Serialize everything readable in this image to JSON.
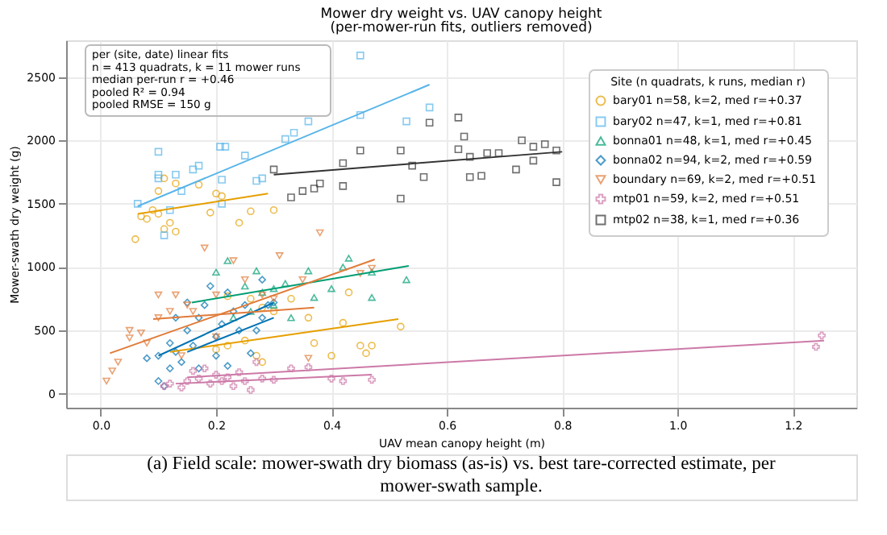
{
  "chart_data": {
    "type": "scatter",
    "title": "Mower dry weight vs. UAV canopy height",
    "subtitle": "(per-mower-run fits, outliers removed)",
    "xlabel": "UAV mean canopy height (m)",
    "ylabel": "Mower-swath dry weight (g)",
    "legend_title": "Site (n quadrats, k runs, median r)",
    "xlim": [
      -0.06,
      1.31
    ],
    "ylim": [
      -110,
      2790
    ],
    "xticks": [
      {
        "value": 0,
        "label": "0.0"
      },
      {
        "value": 0.2,
        "label": "0.2"
      },
      {
        "value": 0.4,
        "label": "0.4"
      },
      {
        "value": 0.6,
        "label": "0.6"
      },
      {
        "value": 0.8,
        "label": "0.8"
      },
      {
        "value": 1,
        "label": "1.0"
      },
      {
        "value": 1.2,
        "label": "1.2"
      }
    ],
    "yticks": [
      0,
      500,
      1000,
      1500,
      2000,
      2500
    ],
    "grid": true,
    "legend": "top right",
    "annotations": [
      "per (site, date) linear fits",
      "n = 413 quadrats,  k = 11 mower runs",
      "median per-run r = +0.46",
      "pooled R² = 0.94",
      "pooled RMSE = 150 g",
      "(a) Field scale: mower-swath dry biomass (as-is) vs. best tare-corrected estimate, per mower-swath sample."
    ],
    "series": [
      {
        "name": "bary01  n=58, k=2, med r=+0.37",
        "color": "#e69f00",
        "marker": "circle",
        "x": [
          0.07,
          0.08,
          0.09,
          0.1,
          0.12,
          0.11,
          0.13,
          0.06,
          0.19,
          0.2,
          0.21,
          0.1,
          0.13,
          0.17,
          0.26,
          0.3,
          0.24,
          0.11,
          0.2,
          0.22,
          0.25,
          0.27,
          0.28,
          0.3,
          0.33,
          0.36,
          0.37,
          0.4,
          0.42,
          0.43,
          0.45,
          0.46,
          0.47,
          0.52,
          0.26,
          0.28,
          0.22
        ],
        "values": [
          1400,
          1380,
          1450,
          1420,
          1350,
          1300,
          1280,
          1220,
          1430,
          1580,
          1560,
          1600,
          1660,
          1650,
          1440,
          1450,
          1350,
          1700,
          350,
          380,
          420,
          300,
          250,
          650,
          750,
          600,
          400,
          300,
          560,
          800,
          380,
          320,
          380,
          530,
          750,
          680,
          770
        ]
      },
      {
        "name": "bary02  n=47, k=1, med r=+0.81",
        "color": "#56b4e9",
        "marker": "square",
        "x": [
          0.064,
          0.1,
          0.1,
          0.1,
          0.13,
          0.14,
          0.16,
          0.17,
          0.207,
          0.216,
          0.21,
          0.25,
          0.27,
          0.28,
          0.32,
          0.335,
          0.36,
          0.45,
          0.45,
          0.53,
          0.57,
          0.21,
          0.12,
          0.11
        ],
        "values": [
          1500,
          1700,
          1910,
          1730,
          1730,
          1600,
          1770,
          1800,
          1950,
          1950,
          1690,
          1880,
          1680,
          1700,
          2010,
          2060,
          2150,
          2200,
          2670,
          2150,
          2260,
          1500,
          1450,
          1250
        ]
      },
      {
        "name": "bonna01  n=48, k=1, med r=+0.45",
        "color": "#009e73",
        "marker": "triangle",
        "x": [
          0.2,
          0.22,
          0.25,
          0.27,
          0.28,
          0.3,
          0.32,
          0.33,
          0.36,
          0.37,
          0.4,
          0.42,
          0.43,
          0.47,
          0.47,
          0.53,
          0.23,
          0.26,
          0.3
        ],
        "values": [
          960,
          1050,
          850,
          970,
          800,
          700,
          870,
          600,
          970,
          760,
          830,
          1000,
          1070,
          960,
          760,
          900,
          600,
          650,
          830
        ]
      },
      {
        "name": "bonna02  n=94, k=2, med r=+0.59",
        "color": "#0072b2",
        "marker": "diamond",
        "x": [
          0.08,
          0.1,
          0.1,
          0.12,
          0.12,
          0.13,
          0.14,
          0.15,
          0.15,
          0.16,
          0.17,
          0.17,
          0.18,
          0.19,
          0.2,
          0.2,
          0.21,
          0.22,
          0.22,
          0.23,
          0.24,
          0.25,
          0.26,
          0.27,
          0.28,
          0.28,
          0.29,
          0.3,
          0.11,
          0.13
        ],
        "values": [
          280,
          100,
          300,
          200,
          400,
          330,
          250,
          500,
          720,
          380,
          200,
          600,
          700,
          850,
          450,
          300,
          550,
          220,
          800,
          650,
          500,
          700,
          320,
          500,
          600,
          900,
          700,
          720,
          60,
          600
        ]
      },
      {
        "name": "boundary  n=69, k=2, med r=+0.51",
        "color": "#e07b39",
        "marker": "triangle-down",
        "x": [
          0.01,
          0.02,
          0.03,
          0.05,
          0.05,
          0.07,
          0.1,
          0.1,
          0.12,
          0.13,
          0.15,
          0.16,
          0.18,
          0.2,
          0.23,
          0.25,
          0.28,
          0.3,
          0.31,
          0.35,
          0.36,
          0.38,
          0.47,
          0.45,
          0.08,
          0.2,
          0.14
        ],
        "values": [
          100,
          180,
          250,
          500,
          440,
          480,
          600,
          780,
          650,
          780,
          700,
          650,
          1150,
          780,
          1050,
          900,
          780,
          750,
          1090,
          900,
          280,
          1270,
          990,
          950,
          400,
          450,
          300
        ]
      },
      {
        "name": "mtp01  n=59, k=2, med r=+0.51",
        "color": "#cc79a7",
        "marker": "cross",
        "x": [
          0.11,
          0.12,
          0.14,
          0.15,
          0.16,
          0.17,
          0.18,
          0.19,
          0.2,
          0.21,
          0.22,
          0.23,
          0.24,
          0.25,
          0.27,
          0.28,
          0.3,
          0.33,
          0.36,
          0.4,
          0.42,
          0.47,
          0.26,
          1.24,
          1.25
        ],
        "values": [
          60,
          80,
          50,
          100,
          180,
          120,
          200,
          80,
          150,
          100,
          130,
          60,
          170,
          100,
          250,
          120,
          110,
          200,
          210,
          120,
          100,
          110,
          30,
          370,
          460
        ]
      },
      {
        "name": "mtp02  n=38, k=1, med r=+0.36",
        "color": "#333333",
        "marker": "square",
        "x": [
          0.3,
          0.33,
          0.35,
          0.37,
          0.38,
          0.42,
          0.42,
          0.45,
          0.52,
          0.52,
          0.54,
          0.56,
          0.57,
          0.62,
          0.63,
          0.62,
          0.64,
          0.67,
          0.73,
          0.75,
          0.77,
          0.79,
          0.75,
          0.72,
          0.64,
          0.66,
          0.79,
          0.69
        ],
        "values": [
          1770,
          1550,
          1600,
          1620,
          1660,
          1640,
          1820,
          1920,
          1540,
          1920,
          1800,
          1710,
          2140,
          2180,
          2030,
          1930,
          1870,
          1900,
          2000,
          1950,
          1970,
          1920,
          1840,
          1770,
          1710,
          1720,
          1670,
          1900
        ]
      },
      {
        "type": "line",
        "color": "#e69f00",
        "x": [
          0.064,
          0.29
        ],
        "values": [
          1420,
          1580
        ]
      },
      {
        "type": "line",
        "color": "#e69f00",
        "x": [
          0.12,
          0.516
        ],
        "values": [
          330,
          590
        ]
      },
      {
        "type": "line",
        "color": "#56b4e9",
        "x": [
          0.064,
          0.57
        ],
        "values": [
          1480,
          2440
        ]
      },
      {
        "type": "line",
        "color": "#009e73",
        "x": [
          0.158,
          0.534
        ],
        "values": [
          720,
          1010
        ]
      },
      {
        "type": "line",
        "color": "#0072b2",
        "x": [
          0.1,
          0.3
        ],
        "values": [
          300,
          720
        ]
      },
      {
        "type": "line",
        "color": "#0072b2",
        "x": [
          0.15,
          0.3
        ],
        "values": [
          330,
          600
        ]
      },
      {
        "type": "line",
        "color": "#e07b39",
        "x": [
          0.016,
          0.475
        ],
        "values": [
          320,
          1060
        ]
      },
      {
        "type": "line",
        "color": "#e07b39",
        "x": [
          0.091,
          0.37
        ],
        "values": [
          590,
          680
        ]
      },
      {
        "type": "line",
        "color": "#cc79a7",
        "x": [
          0.15,
          1.254
        ],
        "values": [
          130,
          420
        ]
      },
      {
        "type": "line",
        "color": "#cc79a7",
        "x": [
          0.13,
          0.47
        ],
        "values": [
          80,
          150
        ]
      },
      {
        "type": "line",
        "color": "#333333",
        "x": [
          0.3,
          0.8
        ],
        "values": [
          1730,
          1910
        ]
      }
    ]
  }
}
